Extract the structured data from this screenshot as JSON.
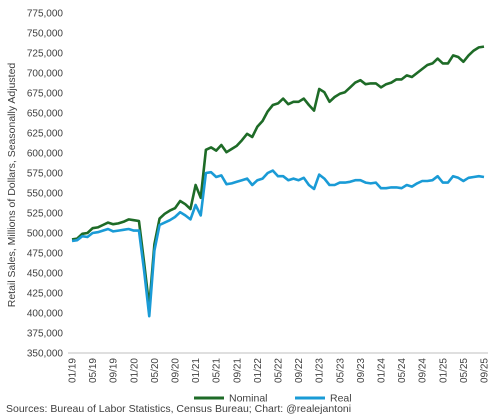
{
  "chart_data": {
    "type": "line",
    "title": "",
    "xlabel": "",
    "ylabel": "Retail Sales, Millions of Dollars, Seasonally Adjusted",
    "ylim": [
      350000,
      775000
    ],
    "yticks": [
      350000,
      375000,
      400000,
      425000,
      450000,
      475000,
      500000,
      525000,
      550000,
      575000,
      600000,
      625000,
      650000,
      675000,
      700000,
      725000,
      750000,
      775000
    ],
    "ytick_labels": [
      "350,000",
      "375,000",
      "400,000",
      "425,000",
      "450,000",
      "475,000",
      "500,000",
      "525,000",
      "550,000",
      "575,000",
      "600,000",
      "625,000",
      "650,000",
      "675,000",
      "700,000",
      "725,000",
      "750,000",
      "775,000"
    ],
    "x": [
      "01/19",
      "02/19",
      "03/19",
      "04/19",
      "05/19",
      "06/19",
      "07/19",
      "08/19",
      "09/19",
      "10/19",
      "11/19",
      "12/19",
      "01/20",
      "02/20",
      "03/20",
      "04/20",
      "05/20",
      "06/20",
      "07/20",
      "08/20",
      "09/20",
      "10/20",
      "11/20",
      "12/20",
      "01/21",
      "02/21",
      "03/21",
      "04/21",
      "05/21",
      "06/21",
      "07/21",
      "08/21",
      "09/21",
      "10/21",
      "11/21",
      "12/21",
      "01/22",
      "02/22",
      "03/22",
      "04/22",
      "05/22",
      "06/22",
      "07/22",
      "08/22",
      "09/22",
      "10/22",
      "11/22",
      "12/22",
      "01/23",
      "02/23",
      "03/23",
      "04/23",
      "05/23",
      "06/23",
      "07/23",
      "08/23",
      "09/23",
      "10/23",
      "11/23",
      "12/23",
      "01/24",
      "02/24",
      "03/24",
      "04/24",
      "05/24",
      "06/24",
      "07/24",
      "08/24",
      "09/24",
      "10/24",
      "11/24",
      "12/24",
      "01/25",
      "02/25",
      "03/25",
      "04/25",
      "05/25",
      "06/25",
      "07/25",
      "08/25",
      "09/25"
    ],
    "xtick_labels": [
      "01/19",
      "05/19",
      "09/19",
      "01/20",
      "05/20",
      "09/20",
      "01/21",
      "05/21",
      "09/21",
      "01/22",
      "05/22",
      "09/22",
      "01/23",
      "05/23",
      "09/23",
      "01/24",
      "05/24",
      "09/24",
      "01/25",
      "05/25",
      "09/25"
    ],
    "series": [
      {
        "name": "Nominal",
        "color": "#1e6b27",
        "values": [
          492000,
          493000,
          499000,
          500000,
          506000,
          507000,
          510000,
          513000,
          511000,
          512000,
          514000,
          517000,
          516000,
          515000,
          463000,
          408000,
          486000,
          518000,
          524000,
          528000,
          531000,
          540000,
          536000,
          530000,
          560000,
          544000,
          604000,
          607000,
          603000,
          610000,
          601000,
          605000,
          609000,
          616000,
          624000,
          620000,
          633000,
          640000,
          652000,
          660000,
          662000,
          668000,
          661000,
          664000,
          664000,
          668000,
          660000,
          653000,
          680000,
          676000,
          664000,
          670000,
          674000,
          676000,
          682000,
          688000,
          691000,
          686000,
          687000,
          687000,
          682000,
          686000,
          688000,
          692000,
          692000,
          697000,
          695000,
          700000,
          705000,
          710000,
          712000,
          718000,
          712000,
          712000,
          722000,
          720000,
          714000,
          722000,
          728000,
          732000,
          733000
        ]
      },
      {
        "name": "Real",
        "color": "#1a9bd6",
        "values": [
          490000,
          491000,
          496000,
          495000,
          500000,
          501000,
          503000,
          505000,
          502000,
          503000,
          504000,
          505000,
          503000,
          503000,
          453000,
          396000,
          478000,
          510000,
          513000,
          516000,
          520000,
          526000,
          522000,
          517000,
          535000,
          522000,
          575000,
          576000,
          570000,
          572000,
          561000,
          562000,
          564000,
          566000,
          568000,
          560000,
          566000,
          568000,
          575000,
          578000,
          571000,
          571000,
          566000,
          568000,
          566000,
          569000,
          560000,
          555000,
          573000,
          568000,
          560000,
          560000,
          563000,
          563000,
          564000,
          566000,
          566000,
          563000,
          562000,
          563000,
          556000,
          556000,
          557000,
          557000,
          556000,
          560000,
          558000,
          562000,
          565000,
          565000,
          566000,
          571000,
          563000,
          563000,
          571000,
          569000,
          565000,
          569000,
          570000,
          571000,
          570000
        ]
      }
    ],
    "legend": {
      "placement": "bottom-center",
      "entries": [
        "Nominal",
        "Real"
      ]
    },
    "grid": false,
    "source": "Sources: Bureau of Labor Statistics, Census Bureau; Chart: @realejantoni"
  }
}
